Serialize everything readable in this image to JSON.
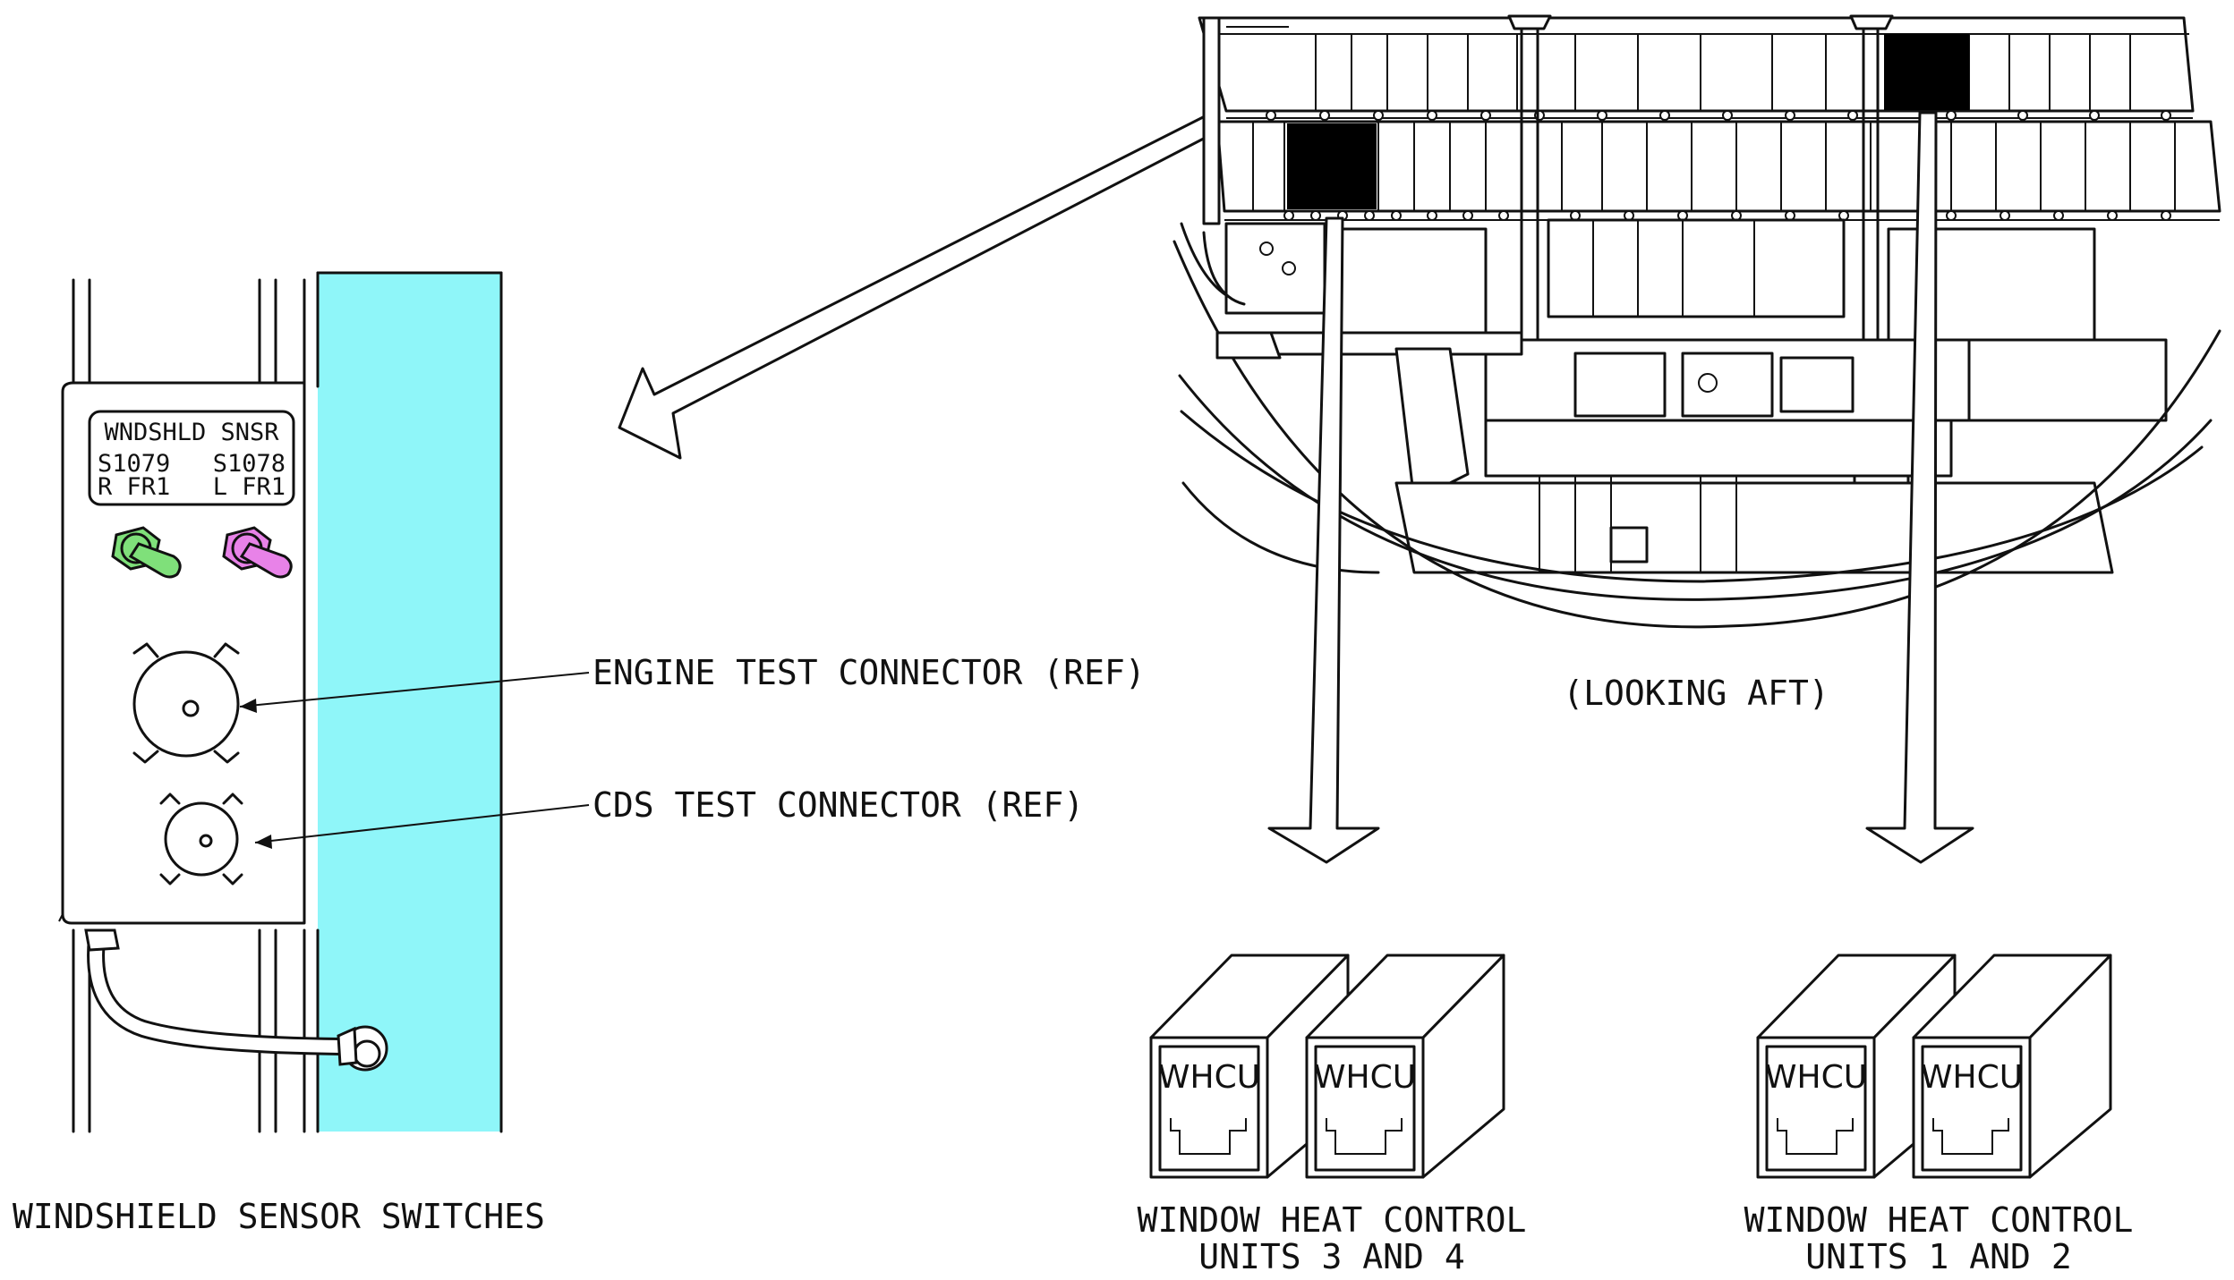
{
  "labels": {
    "engine_test_connector": "ENGINE TEST CONNECTOR (REF)",
    "cds_test_connector": "CDS TEST CONNECTOR (REF)",
    "looking_aft": "(LOOKING AFT)",
    "windshield_sensor_switches": "WINDSHIELD SENSOR SWITCHES",
    "units_34_line1": "WINDOW HEAT CONTROL",
    "units_34_line2": "UNITS 3 AND 4",
    "units_12_line1": "WINDOW HEAT CONTROL",
    "units_12_line2": "UNITS 1 AND 2"
  },
  "panel": {
    "title": "WNDSHLD SNSR",
    "left_switch_id": "S1079",
    "left_switch_loc": "R FR1",
    "right_switch_id": "S1078",
    "right_switch_loc": "L FR1"
  },
  "units": [
    "WHCU",
    "WHCU",
    "WHCU",
    "WHCU"
  ],
  "colors": {
    "cyan_panel": "#8ff6f9",
    "left_switch_green": "#7fe07a",
    "right_switch_magenta": "#e882e8",
    "highlight_black": "#000000"
  }
}
